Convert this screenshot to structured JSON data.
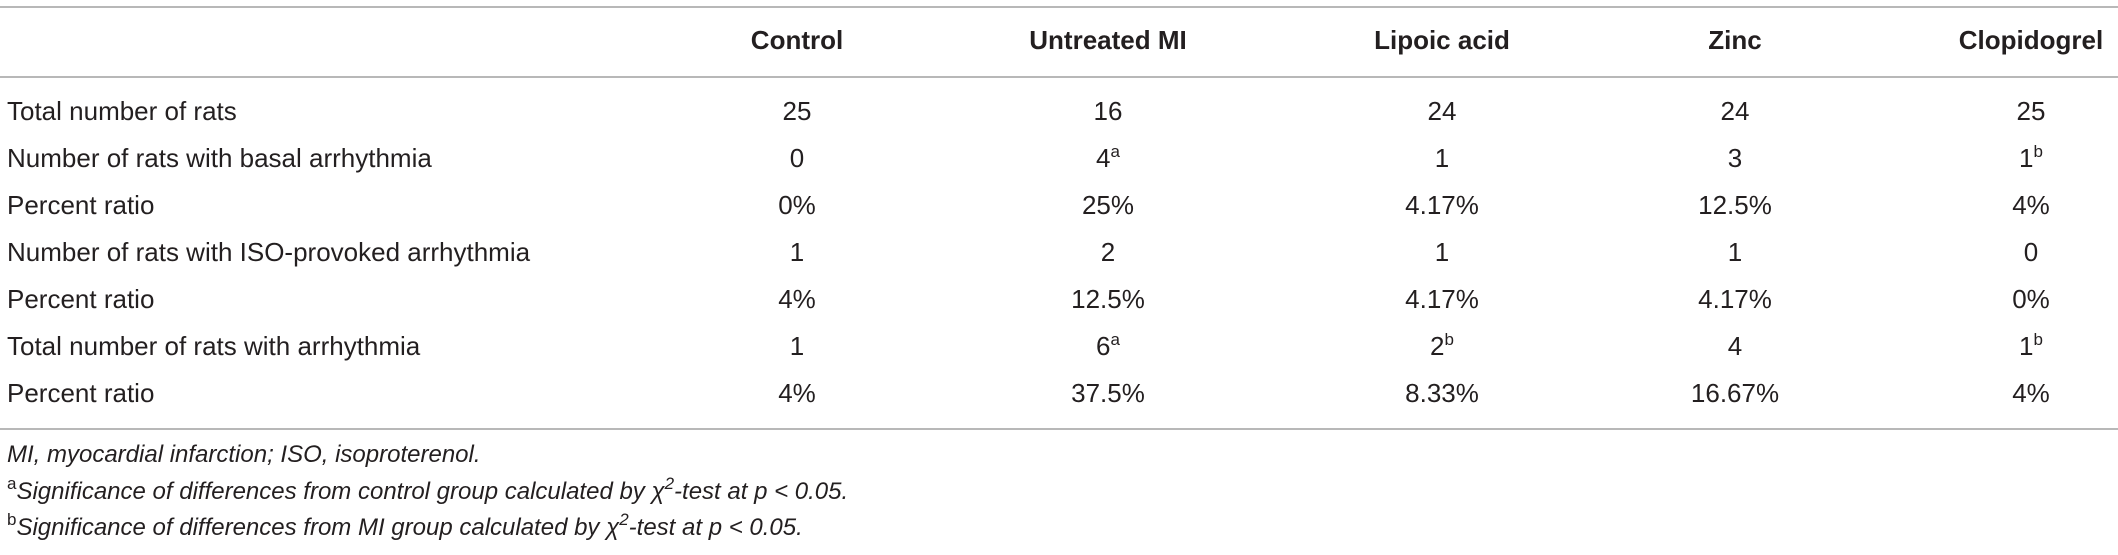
{
  "table": {
    "header": [
      "Control",
      "Untreated MI",
      "Lipoic acid",
      "Zinc",
      "Clopidogrel"
    ],
    "rows": [
      {
        "label": "Total number of rats",
        "cells": [
          "25",
          "16",
          "24",
          "24",
          "25"
        ]
      },
      {
        "label": "Number of rats with basal arrhythmia",
        "cells": [
          "0",
          {
            "text": "4",
            "sup": "a"
          },
          "1",
          "3",
          {
            "text": "1",
            "sup": "b"
          }
        ]
      },
      {
        "label": "Percent ratio",
        "cells": [
          "0%",
          "25%",
          "4.17%",
          "12.5%",
          "4%"
        ]
      },
      {
        "label": "Number of rats with ISO-provoked arrhythmia",
        "cells": [
          "1",
          "2",
          "1",
          "1",
          "0"
        ]
      },
      {
        "label": "Percent ratio",
        "cells": [
          "4%",
          "12.5%",
          "4.17%",
          "4.17%",
          "0%"
        ]
      },
      {
        "label": "Total number of rats with arrhythmia",
        "cells": [
          "1",
          {
            "text": "6",
            "sup": "a"
          },
          {
            "text": "2",
            "sup": "b"
          },
          "4",
          {
            "text": "1",
            "sup": "b"
          }
        ]
      },
      {
        "label": "Percent ratio",
        "cells": [
          "4%",
          "37.5%",
          "8.33%",
          "16.67%",
          "4%"
        ]
      }
    ]
  },
  "footnotes": {
    "abbreviations": "MI, myocardial infarction; ISO, isoproterenol.",
    "notes": [
      {
        "marker": "a",
        "before": "Significance of differences from control group calculated by χ",
        "sup": "2",
        "after": "-test at p < 0.05."
      },
      {
        "marker": "b",
        "before": "Significance of differences from MI group calculated by χ",
        "sup": "2",
        "after": "-test at p < 0.05."
      }
    ]
  }
}
